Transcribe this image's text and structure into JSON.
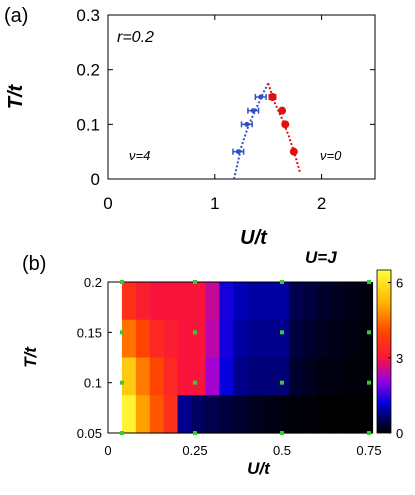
{
  "figure": {
    "panel_a_label": "(a)",
    "panel_b_label": "(b)"
  },
  "chart_data": [
    {
      "type": "scatter",
      "panel": "a",
      "xlabel": "U/t",
      "ylabel": "T/t",
      "xlim": [
        0,
        2.5
      ],
      "ylim": [
        0,
        0.3
      ],
      "xticks": [
        "0",
        "1",
        "2"
      ],
      "xtick_values": [
        0,
        1,
        2
      ],
      "yticks": [
        "0",
        "0.1",
        "0.2",
        "0.3"
      ],
      "ytick_values": [
        0,
        0.1,
        0.2,
        0.3
      ],
      "annotations": {
        "param": "r=0.2",
        "left_region": "ν=4",
        "right_region": "ν=0"
      },
      "colors": {
        "left": "#3050c8",
        "right": "#e01010"
      },
      "series": [
        {
          "x": [
            1.22,
            1.3,
            1.36,
            1.43
          ],
          "xerr": [
            0.05,
            0.05,
            0.05,
            0.05
          ],
          "y": [
            0.05,
            0.1,
            0.125,
            0.15
          ],
          "curve_x": [
            1.18,
            1.25,
            1.32,
            1.39,
            1.46,
            1.5
          ],
          "curve_y": [
            0.0,
            0.06,
            0.1,
            0.13,
            0.16,
            0.175
          ]
        },
        {
          "x": [
            1.74,
            1.66,
            1.63,
            1.54
          ],
          "xerr": [
            0,
            0,
            0,
            0.03
          ],
          "y": [
            0.05,
            0.1,
            0.125,
            0.15
          ],
          "curve_x": [
            1.5,
            1.56,
            1.63,
            1.69,
            1.75,
            1.8
          ],
          "curve_y": [
            0.175,
            0.14,
            0.11,
            0.08,
            0.045,
            0.01
          ]
        }
      ]
    },
    {
      "type": "heatmap",
      "panel": "b",
      "title": "U=J",
      "xlabel": "U/t",
      "ylabel": "T/t",
      "xlim": [
        0,
        0.75
      ],
      "ylim": [
        0.05,
        0.2
      ],
      "xticks": [
        "0",
        "0.25",
        "0.5",
        "0.75"
      ],
      "xtick_values": [
        0,
        0.25,
        0.5,
        0.75
      ],
      "yticks": [
        "0.05",
        "0.1",
        "0.15",
        "0.2"
      ],
      "ytick_values": [
        0.05,
        0.1,
        0.15,
        0.2
      ],
      "colorbar": {
        "min": 0,
        "max": 6.5,
        "ticks": [
          0,
          3,
          6
        ],
        "tick_labels": [
          "0",
          "3",
          "6"
        ]
      },
      "x_columns": [
        0.04,
        0.08,
        0.12,
        0.16,
        0.2,
        0.24,
        0.28,
        0.32,
        0.36,
        0.4,
        0.44,
        0.48,
        0.52,
        0.56,
        0.6,
        0.64,
        0.68,
        0.72
      ],
      "y_rows": [
        0.2,
        0.15,
        0.1,
        0.05
      ],
      "values": [
        [
          3.6,
          3.2,
          3.0,
          3.0,
          3.0,
          3.0,
          2.5,
          1.3,
          1.0,
          0.9,
          0.9,
          0.9,
          0.5,
          0.4,
          0.3,
          0.2,
          0.15,
          0.1
        ],
        [
          4.5,
          4.0,
          3.4,
          3.2,
          3.0,
          3.0,
          2.4,
          1.3,
          0.9,
          0.8,
          0.8,
          0.8,
          0.4,
          0.3,
          0.2,
          0.15,
          0.1,
          0.05
        ],
        [
          5.6,
          4.6,
          4.0,
          3.4,
          3.0,
          3.0,
          2.2,
          1.2,
          0.8,
          0.7,
          0.7,
          0.7,
          0.3,
          0.2,
          0.1,
          0.1,
          0.05,
          0.05
        ],
        [
          6.3,
          5.0,
          4.2,
          3.6,
          0.8,
          0.6,
          0.5,
          0.4,
          0.3,
          0.2,
          0.15,
          0.1,
          0.05,
          0.05,
          0.0,
          0.0,
          0.0,
          0.0
        ]
      ],
      "markers": {
        "color": "#33cc33",
        "x": [
          0.04,
          0.25,
          0.5,
          0.75
        ],
        "y": [
          0.05,
          0.1,
          0.15,
          0.2
        ]
      }
    }
  ]
}
